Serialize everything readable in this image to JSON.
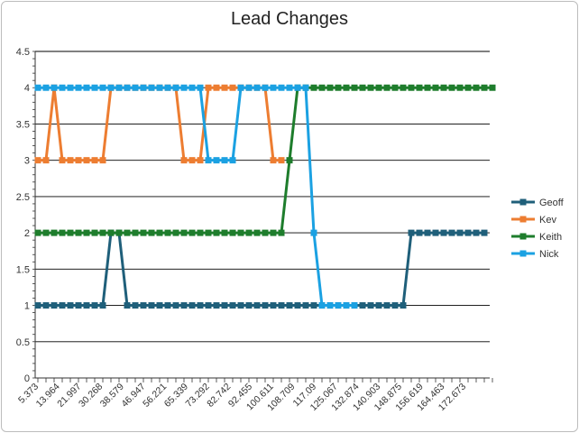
{
  "chart_data": {
    "type": "line",
    "title": "Lead Changes",
    "xlabel": "",
    "ylabel": "",
    "ylim": [
      0,
      4.5
    ],
    "y_ticks": [
      "0",
      "0.5",
      "1",
      "1.5",
      "2",
      "2.5",
      "3",
      "3.5",
      "4",
      "4.5"
    ],
    "x_tick_labels": [
      "5.373",
      "13.964",
      "21.997",
      "30.268",
      "38.579",
      "46.947",
      "56.221",
      "65.339",
      "73.292",
      "82.742",
      "92.455",
      "100.611",
      "108.709",
      "117.09",
      "125.067",
      "132.874",
      "140.903",
      "148.875",
      "156.619",
      "164.463",
      "172.673"
    ],
    "grid": "horizontal",
    "legend_position": "right",
    "series": [
      {
        "name": "Geoff",
        "color": "#1f5f7a",
        "values": [
          1,
          1,
          1,
          1,
          1,
          1,
          1,
          1,
          1,
          2,
          2,
          1,
          1,
          1,
          1,
          1,
          1,
          1,
          1,
          1,
          1,
          1,
          1,
          1,
          1,
          1,
          1,
          1,
          1,
          1,
          1,
          1,
          1,
          1,
          1,
          1,
          1,
          1,
          1,
          1,
          1,
          1,
          1,
          1,
          1,
          1,
          2,
          2,
          2,
          2,
          2,
          2,
          2,
          2,
          2,
          2
        ]
      },
      {
        "name": "Kev",
        "color": "#ed7d31",
        "values": [
          3,
          3,
          4,
          3,
          3,
          3,
          3,
          3,
          3,
          4,
          4,
          4,
          4,
          4,
          4,
          4,
          4,
          4,
          3,
          3,
          3,
          4,
          4,
          4,
          4,
          4,
          4,
          4,
          4,
          3,
          3
        ]
      },
      {
        "name": "Keith",
        "color": "#1e7d2c",
        "values": [
          2,
          2,
          2,
          2,
          2,
          2,
          2,
          2,
          2,
          2,
          2,
          2,
          2,
          2,
          2,
          2,
          2,
          2,
          2,
          2,
          2,
          2,
          2,
          2,
          2,
          2,
          2,
          2,
          2,
          2,
          2,
          3,
          4,
          4,
          4,
          4,
          4,
          4,
          4,
          4,
          4,
          4,
          4,
          4,
          4,
          4,
          4,
          4,
          4,
          4,
          4,
          4,
          4,
          4,
          4,
          4,
          4
        ]
      },
      {
        "name": "Nick",
        "color": "#1ba1e2",
        "values": [
          4,
          4,
          4,
          4,
          4,
          4,
          4,
          4,
          4,
          4,
          4,
          4,
          4,
          4,
          4,
          4,
          4,
          4,
          4,
          4,
          4,
          3,
          3,
          3,
          3,
          4,
          4,
          4,
          4,
          4,
          4,
          4,
          4,
          4,
          2,
          1,
          1,
          1,
          1,
          1
        ]
      }
    ]
  }
}
